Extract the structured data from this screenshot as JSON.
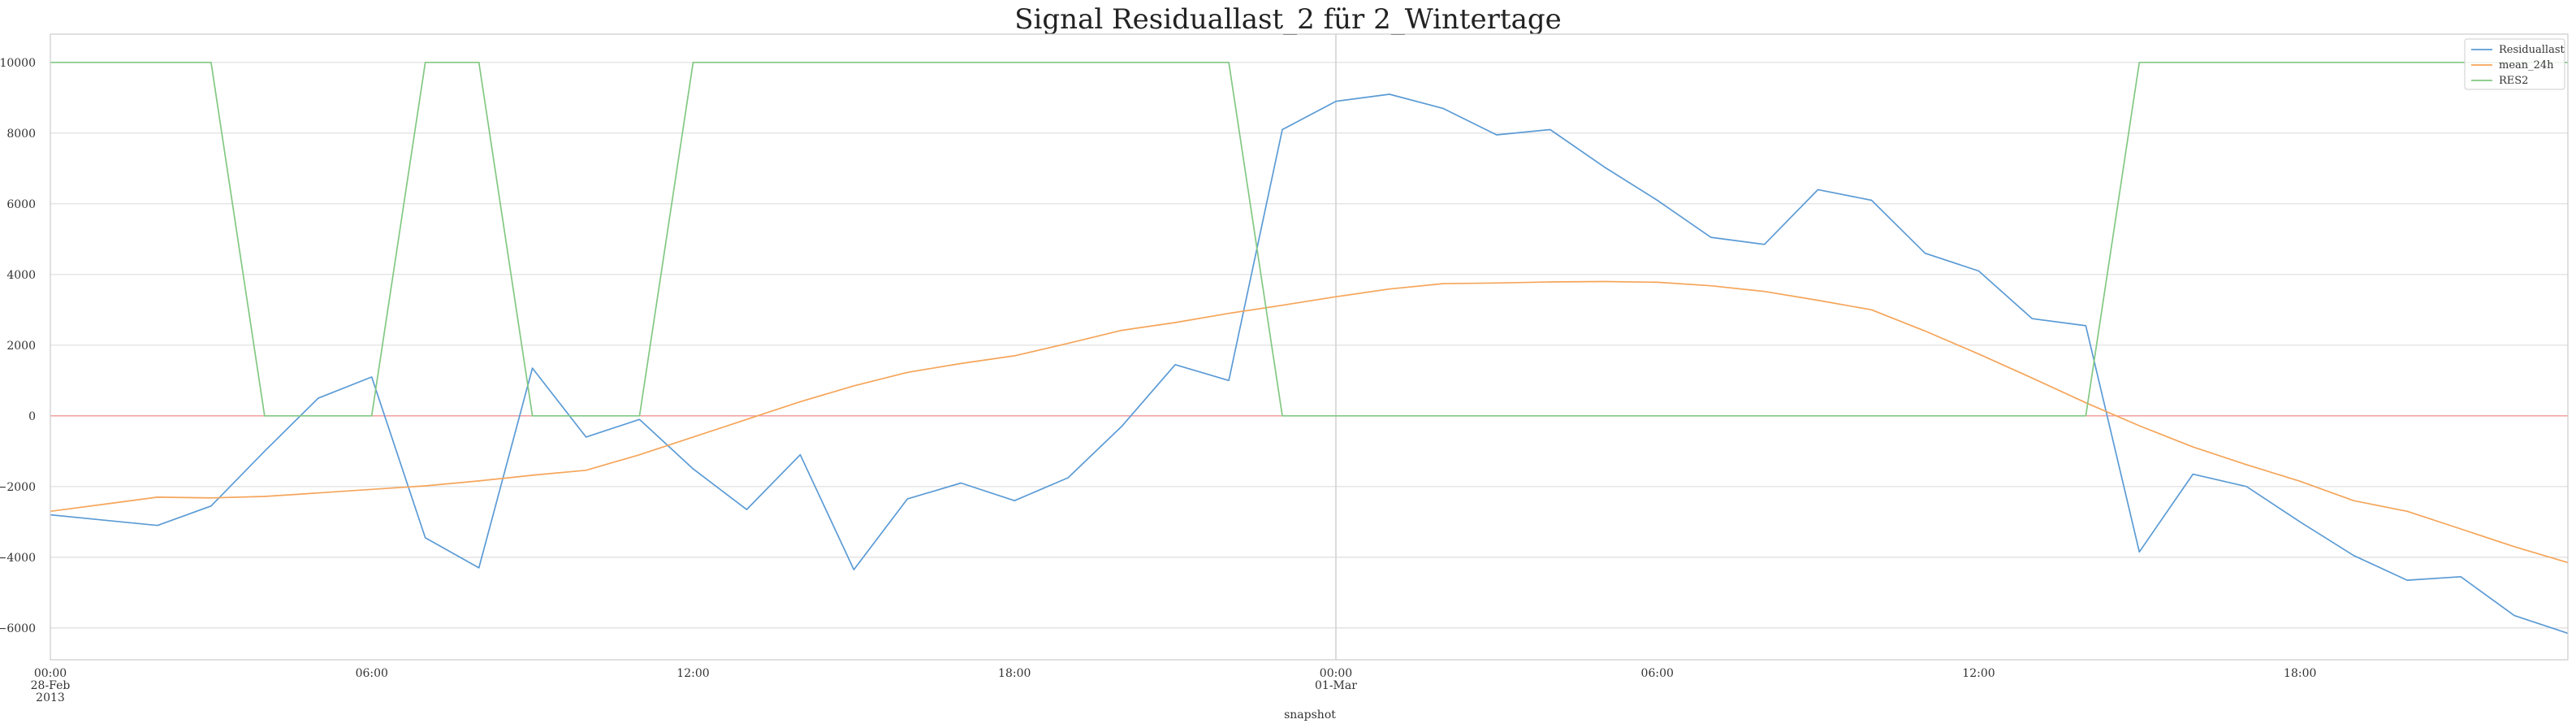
{
  "chart_data": {
    "type": "line",
    "title": "Signal Residuallast_2 für 2_Wintertage",
    "xlabel": "snapshot",
    "ylabel": "",
    "x": [
      "2013-02-28 00:00",
      "2013-02-28 01:00",
      "2013-02-28 02:00",
      "2013-02-28 03:00",
      "2013-02-28 04:00",
      "2013-02-28 05:00",
      "2013-02-28 06:00",
      "2013-02-28 07:00",
      "2013-02-28 08:00",
      "2013-02-28 09:00",
      "2013-02-28 10:00",
      "2013-02-28 11:00",
      "2013-02-28 12:00",
      "2013-02-28 13:00",
      "2013-02-28 14:00",
      "2013-02-28 15:00",
      "2013-02-28 16:00",
      "2013-02-28 17:00",
      "2013-02-28 18:00",
      "2013-02-28 19:00",
      "2013-02-28 20:00",
      "2013-02-28 21:00",
      "2013-02-28 22:00",
      "2013-02-28 23:00",
      "2013-03-01 00:00",
      "2013-03-01 01:00",
      "2013-03-01 02:00",
      "2013-03-01 03:00",
      "2013-03-01 04:00",
      "2013-03-01 05:00",
      "2013-03-01 06:00",
      "2013-03-01 07:00",
      "2013-03-01 08:00",
      "2013-03-01 09:00",
      "2013-03-01 10:00",
      "2013-03-01 11:00",
      "2013-03-01 12:00",
      "2013-03-01 13:00",
      "2013-03-01 14:00",
      "2013-03-01 15:00",
      "2013-03-01 16:00",
      "2013-03-01 17:00",
      "2013-03-01 18:00",
      "2013-03-01 19:00",
      "2013-03-01 20:00",
      "2013-03-01 21:00",
      "2013-03-01 22:00",
      "2013-03-01 23:00"
    ],
    "series": [
      {
        "name": "Residuallast",
        "color": "#5b9bd5",
        "values": [
          -2800,
          -2950,
          -3100,
          -2550,
          -1000,
          500,
          1100,
          -3450,
          -4300,
          1350,
          -600,
          -100,
          -1500,
          -2650,
          -1100,
          -4350,
          -2350,
          -1900,
          -2400,
          -1750,
          -300,
          1450,
          1000,
          8100,
          8900,
          9100,
          8700,
          7950,
          8100,
          7050,
          6100,
          5050,
          4850,
          6400,
          6100,
          4600,
          4100,
          2750,
          2550,
          -3850,
          -1650,
          -2000,
          -3000,
          -3950,
          -4650,
          -4550,
          -5650,
          -6150
        ]
      },
      {
        "name": "mean_24h",
        "color": "#f5a55a",
        "values": [
          -2700,
          -2500,
          -2300,
          -2320,
          -2280,
          -2180,
          -2080,
          -1980,
          -1840,
          -1680,
          -1540,
          -1100,
          -600,
          -100,
          400,
          850,
          1230,
          1480,
          1700,
          2050,
          2420,
          2640,
          2900,
          3130,
          3370,
          3590,
          3740,
          3760,
          3790,
          3800,
          3780,
          3680,
          3520,
          3270,
          3000,
          2400,
          1750,
          1070,
          370,
          -280,
          -880,
          -1380,
          -1850,
          -2400,
          -2700,
          -3200,
          -3700,
          -4150
        ]
      },
      {
        "name": "RES2",
        "color": "#82c882",
        "values": [
          10000,
          10000,
          10000,
          10000,
          0,
          0,
          0,
          10000,
          10000,
          0,
          0,
          0,
          10000,
          10000,
          10000,
          10000,
          10000,
          10000,
          10000,
          10000,
          10000,
          10000,
          10000,
          0,
          0,
          0,
          0,
          0,
          0,
          0,
          0,
          0,
          0,
          0,
          0,
          0,
          0,
          0,
          0,
          10000,
          10000,
          10000,
          10000,
          10000,
          10000,
          10000,
          10000,
          10000
        ]
      }
    ],
    "zero_line_color": "#f29a9a",
    "ylim": [
      -6900,
      10800
    ],
    "yticks": [
      "10000",
      "8000",
      "6000",
      "4000",
      "2000",
      "0",
      "−2000",
      "−4000",
      "−6000"
    ],
    "ytick_values": [
      10000,
      8000,
      6000,
      4000,
      2000,
      0,
      -2000,
      -4000,
      -6000
    ],
    "xticks": [
      {
        "lines": [
          "00:00",
          "28-Feb",
          "2013"
        ],
        "hour": 0
      },
      {
        "lines": [
          "06:00"
        ],
        "hour": 6
      },
      {
        "lines": [
          "12:00"
        ],
        "hour": 12
      },
      {
        "lines": [
          "18:00"
        ],
        "hour": 18
      },
      {
        "lines": [
          "00:00",
          "01-Mar"
        ],
        "hour": 24
      },
      {
        "lines": [
          "06:00"
        ],
        "hour": 30
      },
      {
        "lines": [
          "12:00"
        ],
        "hour": 36
      },
      {
        "lines": [
          "18:00"
        ],
        "hour": 42
      }
    ],
    "grid": true,
    "legend_position": "top-right"
  }
}
